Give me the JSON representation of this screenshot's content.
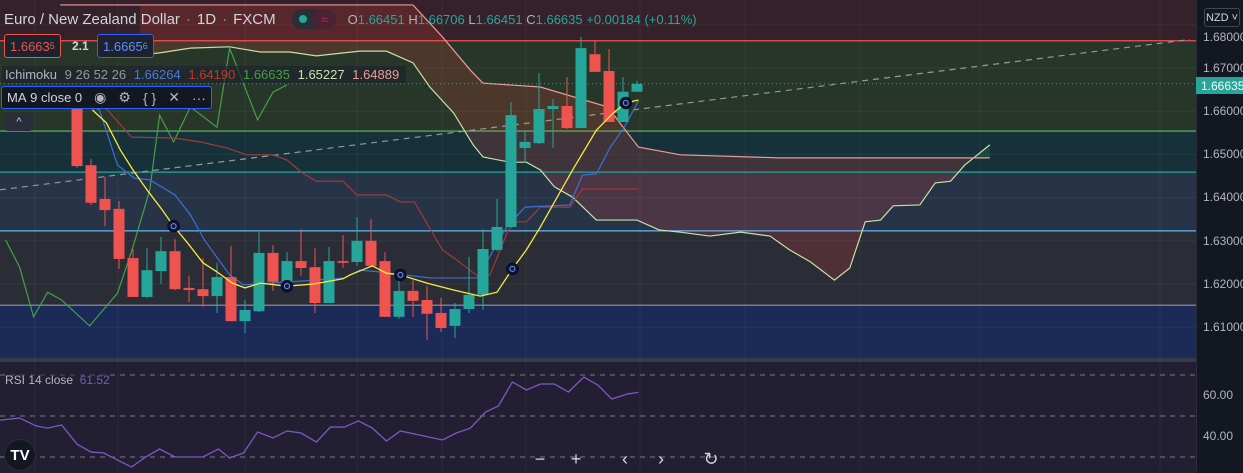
{
  "header": {
    "title": "Euro / New Zealand Dollar",
    "separator": "·",
    "interval": "1D",
    "exchange": "FXCM",
    "ohlc": {
      "o_label": "O",
      "o": "1.66451",
      "h_label": "H",
      "h": "1.66706",
      "l_label": "L",
      "l": "1.66451",
      "c_label": "C",
      "c": "1.66635",
      "change": "+0.00184 (+0.11%)"
    }
  },
  "trade": {
    "sell_main": "1.6663",
    "sell_pip": "5",
    "spread": "2.1",
    "buy_main": "1.6665",
    "buy_pip": "6"
  },
  "ichimoku": {
    "name": "Ichimoku",
    "params": "9 26 52 26",
    "conversion": "1.66264",
    "base": "1.64190",
    "lagging": "1.66635",
    "lead1": "1.65227",
    "lead2": "1.64889"
  },
  "ma": {
    "name": "MA",
    "params": "9 close 0",
    "icons": {
      "eye": "eye-icon",
      "gear": "gear-icon",
      "source": "braces-icon",
      "remove": "close-icon",
      "more": "more-icon"
    },
    "glyphs": {
      "eye": "◉",
      "gear": "⚙",
      "source": "{ }",
      "remove": "✕",
      "more": "···"
    }
  },
  "collapse_glyph": "^",
  "rsi": {
    "name": "RSI",
    "params": "14 close",
    "value": "61.52"
  },
  "axis": {
    "currency": "NZD ˅",
    "labels": [
      "1.68000",
      "1.67000",
      "1.66000",
      "1.65000",
      "1.64000",
      "1.63000",
      "1.62000",
      "1.61000"
    ],
    "current_price": "1.66635",
    "rsi_labels": [
      "60.00",
      "40.00"
    ]
  },
  "nav": {
    "zoom_out": "−",
    "zoom_in": "+",
    "back": "‹",
    "forward": "›",
    "reset": "↻",
    "logo": "TV"
  },
  "colors": {
    "up": "#26a69a",
    "down": "#ef5350",
    "ma": "#f5eb3b",
    "conversion": "#3c6fd6",
    "base": "#a23a3a",
    "lagging": "#43a047",
    "lead1": "#c5e1a5",
    "lead2": "#ef9a9a",
    "rsi": "#7e57c2"
  },
  "chart_data": {
    "type": "candlestick",
    "price_range": [
      1.6015,
      1.6855
    ],
    "candles": [
      [
        1.6626,
        1.6638,
        1.6469,
        1.6473
      ],
      [
        1.6475,
        1.6489,
        1.6383,
        1.6388
      ],
      [
        1.6397,
        1.6448,
        1.6334,
        1.6371
      ],
      [
        1.6374,
        1.6392,
        1.6235,
        1.6258
      ],
      [
        1.626,
        1.6281,
        1.617,
        1.617
      ],
      [
        1.617,
        1.6283,
        1.6168,
        1.6232
      ],
      [
        1.623,
        1.6309,
        1.62,
        1.6276
      ],
      [
        1.6276,
        1.6304,
        1.6186,
        1.6188
      ],
      [
        1.6191,
        1.6219,
        1.6158,
        1.6186
      ],
      [
        1.6188,
        1.626,
        1.6147,
        1.6172
      ],
      [
        1.6172,
        1.6249,
        1.6133,
        1.6216
      ],
      [
        1.6216,
        1.6288,
        1.6114,
        1.6114
      ],
      [
        1.6114,
        1.6163,
        1.6087,
        1.614
      ],
      [
        1.6137,
        1.632,
        1.6135,
        1.6272
      ],
      [
        1.6272,
        1.629,
        1.6184,
        1.6205
      ],
      [
        1.6205,
        1.6274,
        1.6205,
        1.6253
      ],
      [
        1.6253,
        1.6327,
        1.6219,
        1.6237
      ],
      [
        1.6239,
        1.6283,
        1.6133,
        1.6156
      ],
      [
        1.6156,
        1.6286,
        1.6156,
        1.6253
      ],
      [
        1.6253,
        1.6313,
        1.6237,
        1.6249
      ],
      [
        1.6251,
        1.6355,
        1.6242,
        1.63
      ],
      [
        1.63,
        1.635,
        1.6242,
        1.6242
      ],
      [
        1.6253,
        1.6274,
        1.6124,
        1.6124
      ],
      [
        1.6124,
        1.6209,
        1.6119,
        1.6184
      ],
      [
        1.6184,
        1.6209,
        1.6124,
        1.6161
      ],
      [
        1.6163,
        1.6195,
        1.607,
        1.6131
      ],
      [
        1.6133,
        1.6168,
        1.6089,
        1.6098
      ],
      [
        1.6103,
        1.6156,
        1.6075,
        1.6142
      ],
      [
        1.6142,
        1.6263,
        1.6133,
        1.6175
      ],
      [
        1.6175,
        1.6327,
        1.614,
        1.6281
      ],
      [
        1.6279,
        1.6397,
        1.6276,
        1.6332
      ],
      [
        1.6332,
        1.6621,
        1.633,
        1.6591
      ],
      [
        1.6515,
        1.6552,
        1.648,
        1.6529
      ],
      [
        1.6526,
        1.6688,
        1.6524,
        1.6605
      ],
      [
        1.6605,
        1.6628,
        1.6515,
        1.6612
      ],
      [
        1.6612,
        1.6679,
        1.6559,
        1.6561
      ],
      [
        1.6561,
        1.6772,
        1.6561,
        1.6746
      ],
      [
        1.6732,
        1.6763,
        1.6691,
        1.6691
      ],
      [
        1.6693,
        1.6744,
        1.6575,
        1.6575
      ],
      [
        1.6575,
        1.6679,
        1.6575,
        1.6645
      ],
      [
        1.66451,
        1.66706,
        1.66451,
        1.66635
      ]
    ],
    "ma": [
      [
        1.1,
        1.6603
      ],
      [
        2.1,
        1.6573
      ],
      [
        3.1,
        1.651
      ],
      [
        4,
        1.6464
      ],
      [
        5,
        1.6418
      ],
      [
        6.1,
        1.6371
      ],
      [
        6.9,
        1.6334
      ],
      [
        7.9,
        1.6295
      ],
      [
        9,
        1.6249
      ],
      [
        10,
        1.6228
      ],
      [
        11.1,
        1.6202
      ],
      [
        12,
        1.6191
      ],
      [
        13.1,
        1.6202
      ],
      [
        15,
        1.6195
      ],
      [
        16.9,
        1.62
      ],
      [
        19,
        1.6212
      ],
      [
        19.5,
        1.6221
      ],
      [
        21.1,
        1.6242
      ],
      [
        22.1,
        1.6225
      ],
      [
        23.1,
        1.6221
      ],
      [
        25,
        1.6202
      ],
      [
        26.9,
        1.6186
      ],
      [
        28.8,
        1.6172
      ],
      [
        30,
        1.6181
      ],
      [
        31.1,
        1.6235
      ],
      [
        32.1,
        1.6279
      ],
      [
        33.1,
        1.6332
      ],
      [
        34.3,
        1.6401
      ],
      [
        35.4,
        1.6464
      ],
      [
        37.1,
        1.6556
      ],
      [
        38.3,
        1.6596
      ],
      [
        39.2,
        1.6619
      ],
      [
        40.1,
        1.6626
      ]
    ],
    "ma_markers": [
      6.9,
      15,
      23.1,
      31.1,
      39.2
    ],
    "conversion": [
      [
        -1.2,
        1.6637
      ],
      [
        1.6,
        1.6603
      ],
      [
        2.9,
        1.6475
      ],
      [
        4.1,
        1.6445
      ],
      [
        5.2,
        1.6441
      ],
      [
        7,
        1.6406
      ],
      [
        8.1,
        1.636
      ],
      [
        9.1,
        1.6302
      ],
      [
        10.9,
        1.6221
      ],
      [
        11.9,
        1.6198
      ],
      [
        15.2,
        1.6205
      ],
      [
        19.1,
        1.6214
      ],
      [
        20.2,
        1.6232
      ],
      [
        21.6,
        1.6228
      ],
      [
        25.2,
        1.6214
      ],
      [
        28.6,
        1.6214
      ],
      [
        30.7,
        1.6332
      ],
      [
        32,
        1.6378
      ],
      [
        35.2,
        1.6383
      ],
      [
        36.1,
        1.6452
      ],
      [
        37.1,
        1.6455
      ],
      [
        38.1,
        1.6517
      ],
      [
        39.1,
        1.6563
      ],
      [
        40.1,
        1.6624
      ]
    ],
    "base": [
      [
        1.3,
        1.6638
      ],
      [
        2.6,
        1.6587
      ],
      [
        3.9,
        1.654
      ],
      [
        6.9,
        1.6538
      ],
      [
        8.8,
        1.6529
      ],
      [
        10.7,
        1.6515
      ],
      [
        12.1,
        1.6499
      ],
      [
        14,
        1.6499
      ],
      [
        15,
        1.6487
      ],
      [
        16.1,
        1.6457
      ],
      [
        17.1,
        1.6438
      ],
      [
        19,
        1.6438
      ],
      [
        20,
        1.6406
      ],
      [
        22.1,
        1.6406
      ],
      [
        23.1,
        1.639
      ],
      [
        24.1,
        1.639
      ],
      [
        26.1,
        1.6279
      ],
      [
        27.1,
        1.6256
      ],
      [
        28.8,
        1.6214
      ],
      [
        29.5,
        1.6221
      ],
      [
        30.8,
        1.6325
      ],
      [
        31.4,
        1.6344
      ],
      [
        32.1,
        1.6344
      ],
      [
        33.1,
        1.6378
      ],
      [
        35.2,
        1.6378
      ],
      [
        36.1,
        1.642
      ],
      [
        40.1,
        1.642
      ]
    ],
    "lagging": [
      [
        -5.1,
        1.6302
      ],
      [
        -4.1,
        1.6239
      ],
      [
        -3.1,
        1.6124
      ],
      [
        -2.1,
        1.6181
      ],
      [
        -1.1,
        1.6163
      ],
      [
        0.9,
        1.6103
      ],
      [
        2.9,
        1.6179
      ],
      [
        4,
        1.6286
      ],
      [
        5.2,
        1.6418
      ],
      [
        5.9,
        1.6591
      ],
      [
        6.9,
        1.6529
      ],
      [
        8.1,
        1.661
      ],
      [
        10,
        1.6563
      ],
      [
        10.9,
        1.6746
      ],
      [
        12.9,
        1.658
      ],
      [
        14,
        1.6644
      ],
      [
        15,
        1.6661
      ]
    ],
    "lead1": [
      [
        4.5,
        1.673
      ],
      [
        5.9,
        1.6735
      ],
      [
        8.1,
        1.6746
      ],
      [
        10.9,
        1.6749
      ],
      [
        13.1,
        1.6737
      ],
      [
        15.2,
        1.6737
      ],
      [
        17.1,
        1.6728
      ],
      [
        20.2,
        1.6739
      ],
      [
        22.1,
        1.6739
      ],
      [
        24,
        1.6712
      ],
      [
        25.2,
        1.6656
      ],
      [
        26.9,
        1.6596
      ],
      [
        28.3,
        1.6522
      ],
      [
        29,
        1.6494
      ],
      [
        30.9,
        1.6482
      ],
      [
        32.1,
        1.6482
      ],
      [
        33.1,
        1.6464
      ],
      [
        34.1,
        1.6425
      ],
      [
        35.4,
        1.6401
      ],
      [
        37.1,
        1.6348
      ],
      [
        40,
        1.6348
      ],
      [
        41.6,
        1.6325
      ],
      [
        43.1,
        1.632
      ],
      [
        45.2,
        1.6311
      ],
      [
        47.4,
        1.632
      ],
      [
        49.5,
        1.6311
      ],
      [
        50.9,
        1.6279
      ],
      [
        52.4,
        1.6251
      ],
      [
        54.1,
        1.6209
      ],
      [
        55.2,
        1.6237
      ],
      [
        56.3,
        1.6344
      ],
      [
        57.4,
        1.6348
      ],
      [
        58.3,
        1.6381
      ],
      [
        60.2,
        1.6383
      ],
      [
        61.3,
        1.6434
      ],
      [
        62.4,
        1.6438
      ],
      [
        63.4,
        1.6475
      ],
      [
        65.2,
        1.6522
      ]
    ],
    "lead2": [
      [
        -1.2,
        1.6846
      ],
      [
        24,
        1.6846
      ],
      [
        26.1,
        1.6772
      ],
      [
        28.1,
        1.6695
      ],
      [
        29,
        1.6665
      ],
      [
        33.1,
        1.6656
      ],
      [
        37.9,
        1.661
      ],
      [
        40.1,
        1.6517
      ],
      [
        43.1,
        1.6499
      ],
      [
        50.2,
        1.6492
      ],
      [
        65.2,
        1.6492
      ]
    ],
    "levels": [
      {
        "price": 1.6763,
        "color": "#ef5350"
      },
      {
        "price": 1.6554,
        "color": "#66bb6a"
      },
      {
        "price": 1.6459,
        "color": "#26a69a"
      },
      {
        "price": 1.6323,
        "color": "#64b5f6"
      },
      {
        "price": 1.6151,
        "color": "#9598a1"
      }
    ],
    "trendline": [
      [
        -5.5,
        1.6418
      ],
      [
        79.5,
        1.6766
      ]
    ],
    "rsi": [
      [
        -5.5,
        48
      ],
      [
        -4.1,
        49
      ],
      [
        -2.9,
        45.1
      ],
      [
        -2.1,
        44.1
      ],
      [
        -1.1,
        45.6
      ],
      [
        0,
        36.3
      ],
      [
        1,
        32.4
      ],
      [
        1.9,
        32
      ],
      [
        2.9,
        28.5
      ],
      [
        3.9,
        25.1
      ],
      [
        4.9,
        30
      ],
      [
        5.9,
        33.9
      ],
      [
        7,
        30
      ],
      [
        9,
        30
      ],
      [
        10.1,
        33.9
      ],
      [
        10.9,
        29.5
      ],
      [
        11.9,
        32
      ],
      [
        12.9,
        42.2
      ],
      [
        14,
        39.3
      ],
      [
        15,
        42.7
      ],
      [
        16,
        41.7
      ],
      [
        17.1,
        37.3
      ],
      [
        18.1,
        44.6
      ],
      [
        19.1,
        44.6
      ],
      [
        20.1,
        47.6
      ],
      [
        21.1,
        44.1
      ],
      [
        22.1,
        37.8
      ],
      [
        23.1,
        42.7
      ],
      [
        26.1,
        38.3
      ],
      [
        27.1,
        41.7
      ],
      [
        28.1,
        44.1
      ],
      [
        29.2,
        52
      ],
      [
        30.1,
        54.9
      ],
      [
        31.1,
        66.6
      ],
      [
        32.1,
        62.7
      ],
      [
        33.1,
        65.6
      ],
      [
        34.1,
        65.6
      ],
      [
        35.1,
        61.7
      ],
      [
        36.2,
        69
      ],
      [
        37.2,
        65.1
      ],
      [
        38.2,
        58.3
      ],
      [
        39.3,
        60.7
      ],
      [
        40.1,
        61.52
      ]
    ],
    "rsi_levels": [
      70,
      50,
      30
    ]
  }
}
